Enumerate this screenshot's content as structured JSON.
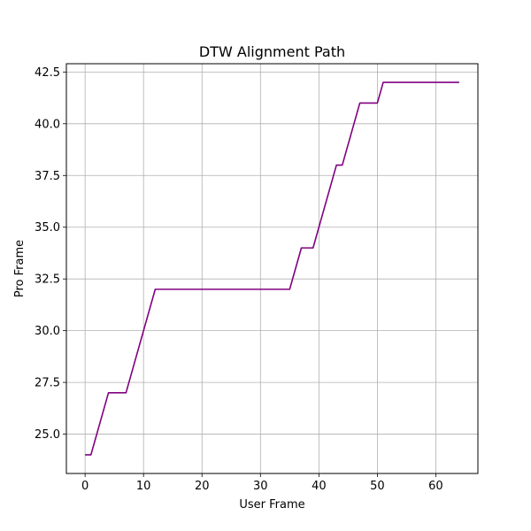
{
  "chart_data": {
    "type": "line",
    "title": "DTW Alignment Path",
    "xlabel": "User Frame",
    "ylabel": "Pro Frame",
    "xlim": [
      -3.2,
      67.2
    ],
    "ylim": [
      23.1,
      42.9
    ],
    "xticks": [
      0,
      10,
      20,
      30,
      40,
      50,
      60
    ],
    "yticks": [
      25.0,
      27.5,
      30.0,
      32.5,
      35.0,
      37.5,
      40.0,
      42.5
    ],
    "xtick_labels": [
      "0",
      "10",
      "20",
      "30",
      "40",
      "50",
      "60"
    ],
    "ytick_labels": [
      "25.0",
      "27.5",
      "30.0",
      "32.5",
      "35.0",
      "37.5",
      "40.0",
      "42.5"
    ],
    "grid": true,
    "series": [
      {
        "color": "#800080",
        "points": [
          [
            0,
            24
          ],
          [
            1,
            24
          ],
          [
            4,
            27
          ],
          [
            5,
            27
          ],
          [
            6,
            27
          ],
          [
            7,
            27
          ],
          [
            12,
            32
          ],
          [
            35,
            32
          ],
          [
            37,
            34
          ],
          [
            38,
            34
          ],
          [
            39,
            34
          ],
          [
            43,
            38
          ],
          [
            44,
            38
          ],
          [
            47,
            41
          ],
          [
            50,
            41
          ],
          [
            51,
            42
          ],
          [
            64,
            42
          ]
        ]
      }
    ]
  }
}
